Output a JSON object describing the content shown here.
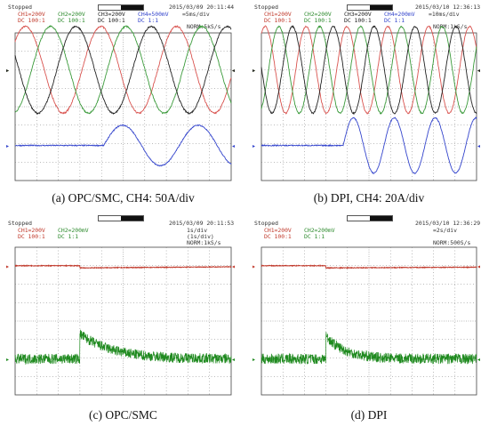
{
  "chart_data": [
    {
      "id": "a",
      "type": "line",
      "caption": "(a) OPC/SMC, CH4: 50A/div",
      "header": {
        "status": "Stopped",
        "timestamp": "2015/03/09 20:11:44",
        "row1": [
          "CH1=200V",
          "CH2=200V",
          "CH3=200V",
          "CH4=500mV",
          "=5ms/div"
        ],
        "row2": [
          "DC 100:1",
          "DC 100:1",
          "DC 100:1",
          "DC 1:1",
          ""
        ],
        "row3": "NORM:5kS/s"
      },
      "x_divisions": 10,
      "y_divisions": 8,
      "ylim": [
        -4,
        4
      ],
      "series": [
        {
          "color": "#d9534f",
          "kind": "sine",
          "amp": 2.35,
          "period": 3.5,
          "phase": -0.4,
          "offset": 2.0,
          "noise": 0.04
        },
        {
          "color": "#3a9a3a",
          "kind": "sine",
          "amp": 2.35,
          "period": 3.5,
          "phase": 0.767,
          "offset": 2.0,
          "noise": 0.04
        },
        {
          "color": "#222222",
          "kind": "sine",
          "amp": 2.35,
          "period": 3.5,
          "phase": 1.933,
          "offset": 2.0,
          "noise": 0.04
        },
        {
          "color": "#3344cc",
          "kind": "transient",
          "flat": -2.1,
          "start": 4.1,
          "amp": 1.1,
          "period": 3.5,
          "phase": 4.1,
          "noise": 0.03
        }
      ]
    },
    {
      "id": "b",
      "type": "line",
      "caption": "(b) DPI, CH4: 20A/div",
      "header": {
        "status": "Stopped",
        "timestamp": "2015/03/10 12:36:13",
        "row1": [
          "CH1=200V",
          "CH2=200V",
          "CH3=200V",
          "CH4=200mV",
          "=10ms/div"
        ],
        "row2": [
          "DC 100:1",
          "DC 100:1",
          "DC 100:1",
          "DC 1:1",
          ""
        ],
        "row3": "NORM:1kS/s"
      },
      "x_divisions": 10,
      "y_divisions": 8,
      "ylim": [
        -4,
        4
      ],
      "series": [
        {
          "color": "#d9534f",
          "kind": "sine",
          "amp": 2.35,
          "period": 1.9,
          "phase": -0.3,
          "offset": 2.0,
          "noise": 0.04
        },
        {
          "color": "#3a9a3a",
          "kind": "sine",
          "amp": 2.35,
          "period": 1.9,
          "phase": 0.333,
          "offset": 2.0,
          "noise": 0.04
        },
        {
          "color": "#222222",
          "kind": "sine",
          "amp": 2.35,
          "period": 1.9,
          "phase": 0.967,
          "offset": 2.0,
          "noise": 0.04
        },
        {
          "color": "#3344cc",
          "kind": "transient",
          "flat": -2.1,
          "start": 3.8,
          "amp": 1.5,
          "period": 1.9,
          "phase": 3.8,
          "noise": 0.03
        }
      ]
    },
    {
      "id": "c",
      "type": "line",
      "caption": "(c) OPC/SMC",
      "header": {
        "status": "Stopped",
        "timestamp": "2015/03/09 20:11:53",
        "row1": [
          "CH1=200V",
          "CH2=200mV",
          "",
          "",
          "1s/div"
        ],
        "row2": [
          "DC 100:1",
          "DC 1:1",
          "",
          "",
          "(1s/div)"
        ],
        "row3": "NORM:1kS/s"
      },
      "x_divisions": 10,
      "y_divisions": 8,
      "ylim": [
        -4,
        4
      ],
      "series": [
        {
          "color": "#c0392b",
          "kind": "dc",
          "level": 3.0,
          "step_at": 3.0,
          "step": -0.12,
          "recover": 0.06,
          "noise": 0.02
        },
        {
          "color": "#1f8a1f",
          "kind": "decay",
          "base": -2.05,
          "start": 3.0,
          "peak": 1.35,
          "tau": 1.5,
          "noise": 0.28
        }
      ]
    },
    {
      "id": "d",
      "type": "line",
      "caption": "(d) DPI",
      "header": {
        "status": "Stopped",
        "timestamp": "2015/03/10 12:36:29",
        "row1": [
          "CH1=200V",
          "CH2=200mV",
          "",
          "",
          "=2s/div"
        ],
        "row2": [
          "DC 100:1",
          "DC 1:1",
          "",
          "",
          ""
        ],
        "row3": "NORM:500S/s"
      },
      "x_divisions": 10,
      "y_divisions": 8,
      "ylim": [
        -4,
        4
      ],
      "series": [
        {
          "color": "#c0392b",
          "kind": "dc",
          "level": 3.0,
          "step_at": 3.0,
          "step": -0.12,
          "recover": 0.04,
          "noise": 0.02
        },
        {
          "color": "#1f8a1f",
          "kind": "decay",
          "base": -2.05,
          "start": 3.0,
          "peak": 1.25,
          "tau": 0.9,
          "noise": 0.28
        }
      ]
    }
  ]
}
